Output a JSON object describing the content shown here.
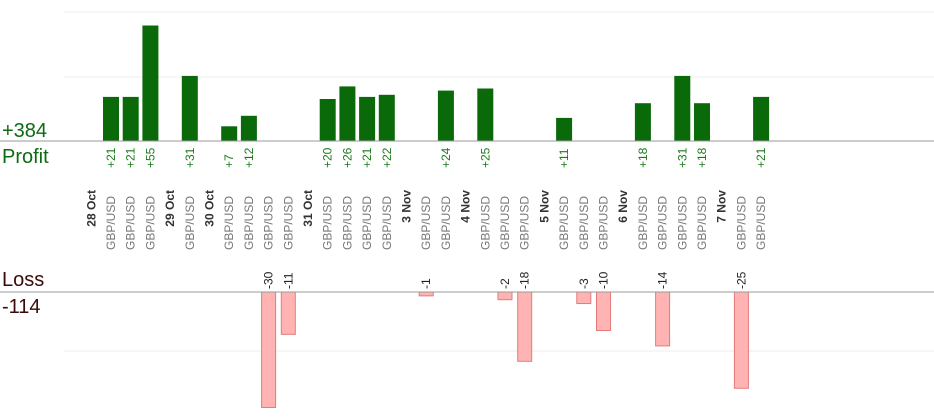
{
  "chart_data": {
    "type": "bar",
    "title": "",
    "profit_label": "Profit",
    "profit_total": "+384",
    "loss_label": "Loss",
    "loss_total": "-114",
    "colors": {
      "profit": "#0a6a0a",
      "loss": "#ffb3b3",
      "loss_border": "#e57a7a"
    },
    "dates": [
      "28 Oct",
      "29 Oct",
      "30 Oct",
      "31 Oct",
      "3 Nov",
      "4 Nov",
      "5 Nov",
      "6 Nov",
      "7 Nov"
    ],
    "trades": [
      {
        "date": "28 Oct",
        "pair": "GBP/USD",
        "value": 21
      },
      {
        "date": "28 Oct",
        "pair": "GBP/USD",
        "value": 21
      },
      {
        "date": "28 Oct",
        "pair": "GBP/USD",
        "value": 55
      },
      {
        "date": "29 Oct",
        "pair": "GBP/USD",
        "value": 31
      },
      {
        "date": "30 Oct",
        "pair": "GBP/USD",
        "value": 7
      },
      {
        "date": "30 Oct",
        "pair": "GBP/USD",
        "value": 12
      },
      {
        "date": "30 Oct",
        "pair": "GBP/USD",
        "value": -30
      },
      {
        "date": "30 Oct",
        "pair": "GBP/USD",
        "value": -11
      },
      {
        "date": "31 Oct",
        "pair": "GBP/USD",
        "value": 20
      },
      {
        "date": "31 Oct",
        "pair": "GBP/USD",
        "value": 26
      },
      {
        "date": "31 Oct",
        "pair": "GBP/USD",
        "value": 21
      },
      {
        "date": "31 Oct",
        "pair": "GBP/USD",
        "value": 22
      },
      {
        "date": "3 Nov",
        "pair": "GBP/USD",
        "value": -1
      },
      {
        "date": "3 Nov",
        "pair": "GBP/USD",
        "value": 24
      },
      {
        "date": "4 Nov",
        "pair": "GBP/USD",
        "value": 25
      },
      {
        "date": "4 Nov",
        "pair": "GBP/USD",
        "value": -2
      },
      {
        "date": "4 Nov",
        "pair": "GBP/USD",
        "value": -18
      },
      {
        "date": "5 Nov",
        "pair": "GBP/USD",
        "value": 11
      },
      {
        "date": "5 Nov",
        "pair": "GBP/USD",
        "value": -3
      },
      {
        "date": "5 Nov",
        "pair": "GBP/USD",
        "value": -10
      },
      {
        "date": "6 Nov",
        "pair": "GBP/USD",
        "value": 18
      },
      {
        "date": "6 Nov",
        "pair": "GBP/USD",
        "value": -14
      },
      {
        "date": "6 Nov",
        "pair": "GBP/USD",
        "value": 31
      },
      {
        "date": "6 Nov",
        "pair": "GBP/USD",
        "value": 18
      },
      {
        "date": "7 Nov",
        "pair": "GBP/USD",
        "value": -25
      },
      {
        "date": "7 Nov",
        "pair": "GBP/USD",
        "value": 21
      }
    ]
  }
}
